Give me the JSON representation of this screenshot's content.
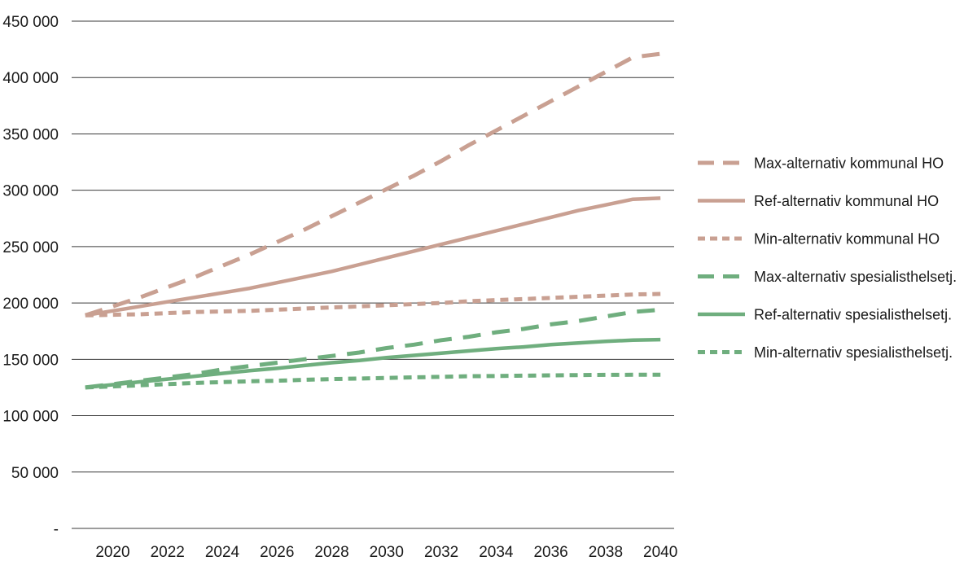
{
  "chart_data": {
    "type": "line",
    "title": "",
    "xlabel": "",
    "ylabel": "",
    "x": [
      2019,
      2020,
      2021,
      2022,
      2023,
      2024,
      2025,
      2026,
      2027,
      2028,
      2029,
      2030,
      2031,
      2032,
      2033,
      2034,
      2035,
      2036,
      2037,
      2038,
      2039,
      2040
    ],
    "xticks": [
      2020,
      2022,
      2024,
      2026,
      2028,
      2030,
      2032,
      2034,
      2036,
      2038,
      2040
    ],
    "xtick_labels": [
      "2020",
      "2022",
      "2024",
      "2026",
      "2028",
      "2030",
      "2032",
      "2034",
      "2036",
      "2038",
      "2040"
    ],
    "ylim": [
      0,
      450000
    ],
    "yticks": [
      0,
      50000,
      100000,
      150000,
      200000,
      250000,
      300000,
      350000,
      400000,
      450000
    ],
    "ytick_labels": [
      "-",
      "50 000",
      "100 000",
      "150 000",
      "200 000",
      "250 000",
      "300 000",
      "350 000",
      "400 000",
      "450 000"
    ],
    "grid": true,
    "legend_position": "right",
    "series": [
      {
        "name": "Max-alternativ kommunal HO",
        "color": "#c9a092",
        "style": "long-dash",
        "values": [
          189000,
          197000,
          205000,
          214000,
          223000,
          233000,
          243000,
          254000,
          265000,
          277000,
          289000,
          301000,
          313000,
          326000,
          340000,
          353000,
          366000,
          379000,
          392000,
          405000,
          418000,
          421000
        ]
      },
      {
        "name": "Ref-alternativ kommunal HO",
        "color": "#c9a092",
        "style": "solid",
        "values": [
          189000,
          193000,
          197000,
          201000,
          205000,
          209000,
          213000,
          218000,
          223000,
          228000,
          234000,
          240000,
          246000,
          252000,
          258000,
          264000,
          270000,
          276000,
          282000,
          287000,
          292000,
          293000
        ]
      },
      {
        "name": "Min-alternativ kommunal HO",
        "color": "#c9a092",
        "style": "short-dash",
        "values": [
          189000,
          189500,
          190000,
          191000,
          192000,
          192500,
          193000,
          194000,
          195000,
          196000,
          197000,
          198000,
          199000,
          200000,
          201500,
          202500,
          203500,
          204500,
          205500,
          206500,
          207500,
          208000
        ]
      },
      {
        "name": "Max-alternativ spesialisthelsetj.",
        "color": "#6fae7e",
        "style": "long-dash",
        "values": [
          125000,
          128000,
          131000,
          134000,
          137000,
          141000,
          144000,
          147000,
          150000,
          153000,
          156000,
          160000,
          163000,
          167000,
          170000,
          174000,
          177000,
          181000,
          184000,
          188000,
          192000,
          194000
        ]
      },
      {
        "name": "Ref-alternativ spesialisthelsetj.",
        "color": "#6fae7e",
        "style": "solid",
        "values": [
          125000,
          127500,
          130000,
          132500,
          135000,
          137500,
          140000,
          142000,
          144500,
          147000,
          149000,
          151500,
          153500,
          155500,
          157500,
          159500,
          161000,
          163000,
          164500,
          166000,
          167000,
          167500
        ]
      },
      {
        "name": "Min-alternativ spesialisthelsetj.",
        "color": "#6fae7e",
        "style": "short-dash",
        "values": [
          125000,
          126000,
          127000,
          128000,
          129000,
          129800,
          130500,
          131000,
          131800,
          132500,
          133000,
          133500,
          134000,
          134500,
          135000,
          135200,
          135500,
          135800,
          136000,
          136200,
          136300,
          136400
        ]
      }
    ]
  }
}
